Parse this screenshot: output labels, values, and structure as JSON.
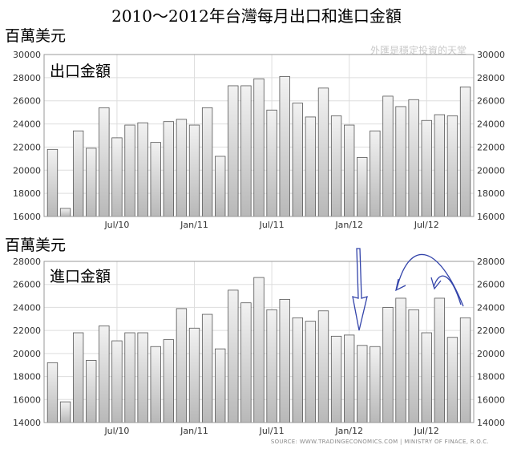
{
  "title": "2010～2012年台灣每月出口和進口金額",
  "watermark": "外匯是穩定投資的天堂",
  "source": "SOURCE: WWW.TRADINGECONOMICS.COM  |  MINISTRY OF FINACE, R.O.C.",
  "chart_data": [
    {
      "type": "bar",
      "unit": "百萬美元",
      "series_label": "出口金額",
      "ylim": [
        16000,
        30000
      ],
      "yticks": [
        16000,
        18000,
        20000,
        22000,
        24000,
        26000,
        28000,
        30000
      ],
      "xticks": [
        {
          "index": 5,
          "label": "Jul/10"
        },
        {
          "index": 11,
          "label": "Jan/11"
        },
        {
          "index": 17,
          "label": "Jul/11"
        },
        {
          "index": 23,
          "label": "Jan/12"
        },
        {
          "index": 29,
          "label": "Jul/12"
        }
      ],
      "values": [
        21800,
        16700,
        23400,
        21900,
        25400,
        22800,
        23900,
        24100,
        22400,
        24200,
        24400,
        23900,
        25400,
        21200,
        27300,
        27300,
        27900,
        25200,
        28100,
        25800,
        24600,
        27100,
        24700,
        23900,
        21100,
        23400,
        26400,
        25500,
        26100,
        24300,
        24800,
        24700,
        27200
      ],
      "grid": true
    },
    {
      "type": "bar",
      "unit": "百萬美元",
      "series_label": "進口金額",
      "ylim": [
        14000,
        28000
      ],
      "yticks": [
        14000,
        16000,
        18000,
        20000,
        22000,
        24000,
        26000,
        28000
      ],
      "xticks": [
        {
          "index": 5,
          "label": "Jul/10"
        },
        {
          "index": 11,
          "label": "Jan/11"
        },
        {
          "index": 17,
          "label": "Jul/11"
        },
        {
          "index": 23,
          "label": "Jan/12"
        },
        {
          "index": 29,
          "label": "Jul/12"
        }
      ],
      "values": [
        19200,
        15800,
        21800,
        19400,
        22400,
        21100,
        21800,
        21800,
        20600,
        21200,
        23900,
        22200,
        23400,
        20400,
        25500,
        24400,
        26600,
        23800,
        24700,
        23100,
        22800,
        23700,
        21500,
        21600,
        20700,
        20600,
        24000,
        24800,
        23800,
        21800,
        24800,
        21400,
        23100
      ],
      "grid": true
    }
  ]
}
